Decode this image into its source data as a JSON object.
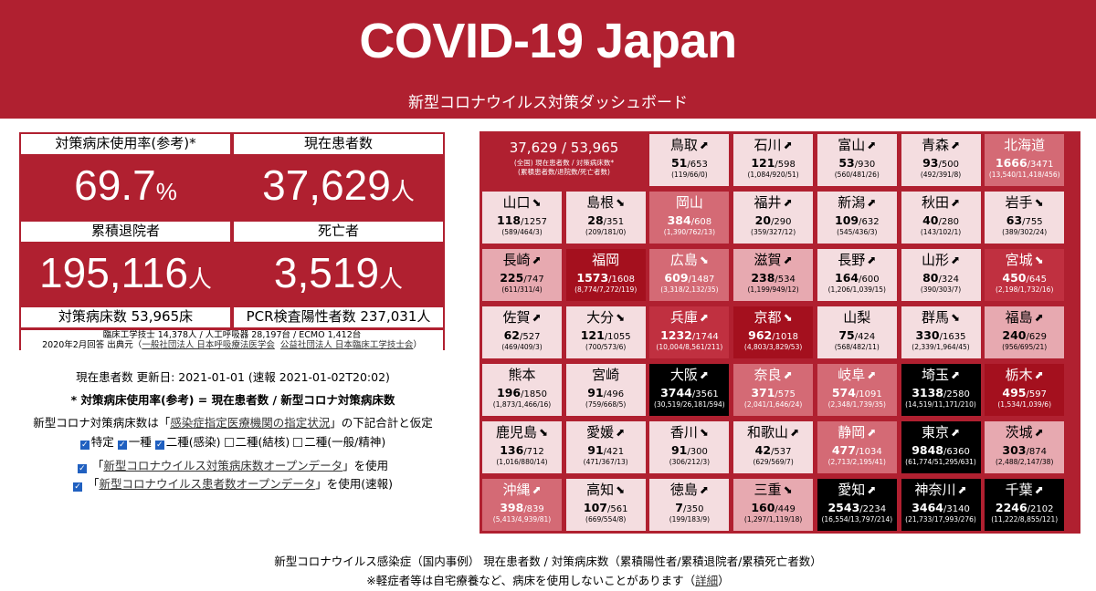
{
  "header": {
    "title": "COVID-19 Japan",
    "subtitle": "新型コロナウイルス対策ダッシュボード"
  },
  "summary": {
    "bed_usage_label": "対策病床使用率(参考)*",
    "bed_usage_value": "69.7",
    "bed_usage_unit": "%",
    "current_label": "現在患者数",
    "current_value": "37,629",
    "person_unit": "人",
    "discharged_label": "累積退院者",
    "discharged_value": "195,116",
    "deaths_label": "死亡者",
    "deaths_value": "3,519",
    "beds_label": "対策病床数 53,965床",
    "pcr_label": "PCR検査陽性者数 237,031人",
    "equip_note": "臨床工学技士 14,378人 / 人工呼吸器 28,197台 / ECMO 1,412台",
    "source_prefix": "2020年2月回答 出典元（",
    "source_link1": "一般社団法人 日本呼吸療法医学会",
    "source_link2": "公益社団法人 日本臨床工学技士会",
    "source_suffix": "）"
  },
  "controls": {
    "updated": "現在患者数 更新日: 2021-01-01 (速報 2021-01-02T20:02)",
    "formula": "* 対策病床使用率(参考) = 現在患者数 / 新型コロナ対策病床数",
    "beds_prefix": "新型コロナ対策病床数は「",
    "beds_link": "感染症指定医療機関の指定状況",
    "beds_suffix": "」の下記合計と仮定",
    "checkboxes": [
      {
        "label": "特定",
        "checked": true
      },
      {
        "label": "一種",
        "checked": true
      },
      {
        "label": "二種(感染)",
        "checked": true
      },
      {
        "label": "二種(結核)",
        "checked": false
      },
      {
        "label": "二種(一般/精神)",
        "checked": false
      }
    ],
    "open1_prefix": "「",
    "open1_link": "新型コロナウイルス対策病床数オープンデータ",
    "open1_suffix": "」を使用",
    "open2_prefix": "「",
    "open2_link": "新型コロナウイルス患者数オープンデータ",
    "open2_suffix": "」を使用(速報)"
  },
  "national": {
    "line1": "37,629 / 53,965",
    "line2": "(全国) 現在患者数 / 対策病床数*",
    "line3": "(累積患者数/退院数/死亡者数)"
  },
  "prefectures": [
    {
      "name": "鳥取",
      "arrow": "up",
      "cur": "51",
      "beds": "/653",
      "sub": "(119/66/0)",
      "level": 0
    },
    {
      "name": "石川",
      "arrow": "up",
      "cur": "121",
      "beds": "/598",
      "sub": "(1,084/920/51)",
      "level": 0
    },
    {
      "name": "富山",
      "arrow": "up",
      "cur": "53",
      "beds": "/930",
      "sub": "(560/481/26)",
      "level": 0
    },
    {
      "name": "青森",
      "arrow": "up",
      "cur": "93",
      "beds": "/500",
      "sub": "(492/391/8)",
      "level": 0
    },
    {
      "name": "北海道",
      "arrow": "",
      "cur": "1666",
      "beds": "/3471",
      "sub": "(13,540/11,418/456)",
      "level": 2
    },
    {
      "name": "山口",
      "arrow": "down",
      "cur": "118",
      "beds": "/1257",
      "sub": "(589/464/3)",
      "level": 0
    },
    {
      "name": "島根",
      "arrow": "down",
      "cur": "28",
      "beds": "/351",
      "sub": "(209/181/0)",
      "level": 0
    },
    {
      "name": "岡山",
      "arrow": "",
      "cur": "384",
      "beds": "/608",
      "sub": "(1,390/762/13)",
      "level": 2
    },
    {
      "name": "福井",
      "arrow": "up",
      "cur": "20",
      "beds": "/290",
      "sub": "(359/327/12)",
      "level": 0
    },
    {
      "name": "新潟",
      "arrow": "up",
      "cur": "109",
      "beds": "/632",
      "sub": "(545/436/3)",
      "level": 0
    },
    {
      "name": "秋田",
      "arrow": "up",
      "cur": "40",
      "beds": "/280",
      "sub": "(143/102/1)",
      "level": 0
    },
    {
      "name": "岩手",
      "arrow": "down",
      "cur": "63",
      "beds": "/755",
      "sub": "(389/302/24)",
      "level": 0
    },
    {
      "name": "長崎",
      "arrow": "up",
      "cur": "225",
      "beds": "/747",
      "sub": "(611/311/4)",
      "level": 1
    },
    {
      "name": "福岡",
      "arrow": "",
      "cur": "1573",
      "beds": "/1608",
      "sub": "(8,774/7,272/119)",
      "level": 4
    },
    {
      "name": "広島",
      "arrow": "down",
      "cur": "609",
      "beds": "/1487",
      "sub": "(3,318/2,132/35)",
      "level": 2
    },
    {
      "name": "滋賀",
      "arrow": "up",
      "cur": "238",
      "beds": "/534",
      "sub": "(1,199/949/12)",
      "level": 1
    },
    {
      "name": "長野",
      "arrow": "up",
      "cur": "164",
      "beds": "/600",
      "sub": "(1,206/1,039/15)",
      "level": 0
    },
    {
      "name": "山形",
      "arrow": "up",
      "cur": "80",
      "beds": "/324",
      "sub": "(390/303/7)",
      "level": 0
    },
    {
      "name": "宮城",
      "arrow": "down",
      "cur": "450",
      "beds": "/645",
      "sub": "(2,198/1,732/16)",
      "level": 3
    },
    {
      "name": "佐賀",
      "arrow": "up",
      "cur": "62",
      "beds": "/527",
      "sub": "(469/409/3)",
      "level": 0
    },
    {
      "name": "大分",
      "arrow": "down",
      "cur": "121",
      "beds": "/1055",
      "sub": "(700/573/6)",
      "level": 0
    },
    {
      "name": "兵庫",
      "arrow": "up",
      "cur": "1232",
      "beds": "/1744",
      "sub": "(10,004/8,561/211)",
      "level": 3
    },
    {
      "name": "京都",
      "arrow": "down",
      "cur": "962",
      "beds": "/1018",
      "sub": "(4,803/3,829/53)",
      "level": 4
    },
    {
      "name": "山梨",
      "arrow": "",
      "cur": "75",
      "beds": "/424",
      "sub": "(568/482/11)",
      "level": 0
    },
    {
      "name": "群馬",
      "arrow": "down",
      "cur": "330",
      "beds": "/1635",
      "sub": "(2,339/1,964/45)",
      "level": 0
    },
    {
      "name": "福島",
      "arrow": "up",
      "cur": "240",
      "beds": "/629",
      "sub": "(956/695/21)",
      "level": 1
    },
    {
      "name": "熊本",
      "arrow": "",
      "cur": "196",
      "beds": "/1850",
      "sub": "(1,873/1,466/16)",
      "level": 0
    },
    {
      "name": "宮崎",
      "arrow": "",
      "cur": "91",
      "beds": "/496",
      "sub": "(759/668/5)",
      "level": 0
    },
    {
      "name": "大阪",
      "arrow": "up",
      "cur": "3744",
      "beds": "/3561",
      "sub": "(30,519/26,181/594)",
      "level": 5
    },
    {
      "name": "奈良",
      "arrow": "up",
      "cur": "371",
      "beds": "/575",
      "sub": "(2,041/1,646/24)",
      "level": 2
    },
    {
      "name": "岐阜",
      "arrow": "up",
      "cur": "574",
      "beds": "/1091",
      "sub": "(2,348/1,739/35)",
      "level": 2
    },
    {
      "name": "埼玉",
      "arrow": "up",
      "cur": "3138",
      "beds": "/2580",
      "sub": "(14,519/11,171/210)",
      "level": 5
    },
    {
      "name": "栃木",
      "arrow": "up",
      "cur": "495",
      "beds": "/597",
      "sub": "(1,534/1,039/6)",
      "level": 4
    },
    {
      "name": "鹿児島",
      "arrow": "down",
      "cur": "136",
      "beds": "/712",
      "sub": "(1,016/880/14)",
      "level": 0
    },
    {
      "name": "愛媛",
      "arrow": "up",
      "cur": "91",
      "beds": "/421",
      "sub": "(471/367/13)",
      "level": 0
    },
    {
      "name": "香川",
      "arrow": "down",
      "cur": "91",
      "beds": "/300",
      "sub": "(306/212/3)",
      "level": 0
    },
    {
      "name": "和歌山",
      "arrow": "up",
      "cur": "42",
      "beds": "/537",
      "sub": "(629/569/7)",
      "level": 0
    },
    {
      "name": "静岡",
      "arrow": "up",
      "cur": "477",
      "beds": "/1034",
      "sub": "(2,713/2,195/41)",
      "level": 2
    },
    {
      "name": "東京",
      "arrow": "up",
      "cur": "9848",
      "beds": "/6360",
      "sub": "(61,774/51,295/631)",
      "level": 5
    },
    {
      "name": "茨城",
      "arrow": "up",
      "cur": "303",
      "beds": "/874",
      "sub": "(2,488/2,147/38)",
      "level": 1
    },
    {
      "name": "沖縄",
      "arrow": "up",
      "cur": "398",
      "beds": "/839",
      "sub": "(5,413/4,939/81)",
      "level": 2
    },
    {
      "name": "高知",
      "arrow": "down",
      "cur": "107",
      "beds": "/561",
      "sub": "(669/554/8)",
      "level": 0
    },
    {
      "name": "徳島",
      "arrow": "up",
      "cur": "7",
      "beds": "/350",
      "sub": "(199/183/9)",
      "level": 0
    },
    {
      "name": "三重",
      "arrow": "down",
      "cur": "160",
      "beds": "/449",
      "sub": "(1,297/1,119/18)",
      "level": 1
    },
    {
      "name": "愛知",
      "arrow": "up",
      "cur": "2543",
      "beds": "/2234",
      "sub": "(16,554/13,797/214)",
      "level": 5
    },
    {
      "name": "神奈川",
      "arrow": "up",
      "cur": "3464",
      "beds": "/3140",
      "sub": "(21,733/17,993/276)",
      "level": 5
    },
    {
      "name": "千葉",
      "arrow": "up",
      "cur": "2246",
      "beds": "/2102",
      "sub": "(11,222/8,855/121)",
      "level": 5
    }
  ],
  "footer": {
    "line1": "新型コロナウイルス感染症（国内事例） 現在患者数 / 対策病床数（累積陽性者/累積退院者/累積死亡者数）",
    "line2_prefix": "※軽症者等は自宅療養など、病床を使用しないことがあります（",
    "line2_link": "詳細",
    "line2_suffix": "）"
  }
}
